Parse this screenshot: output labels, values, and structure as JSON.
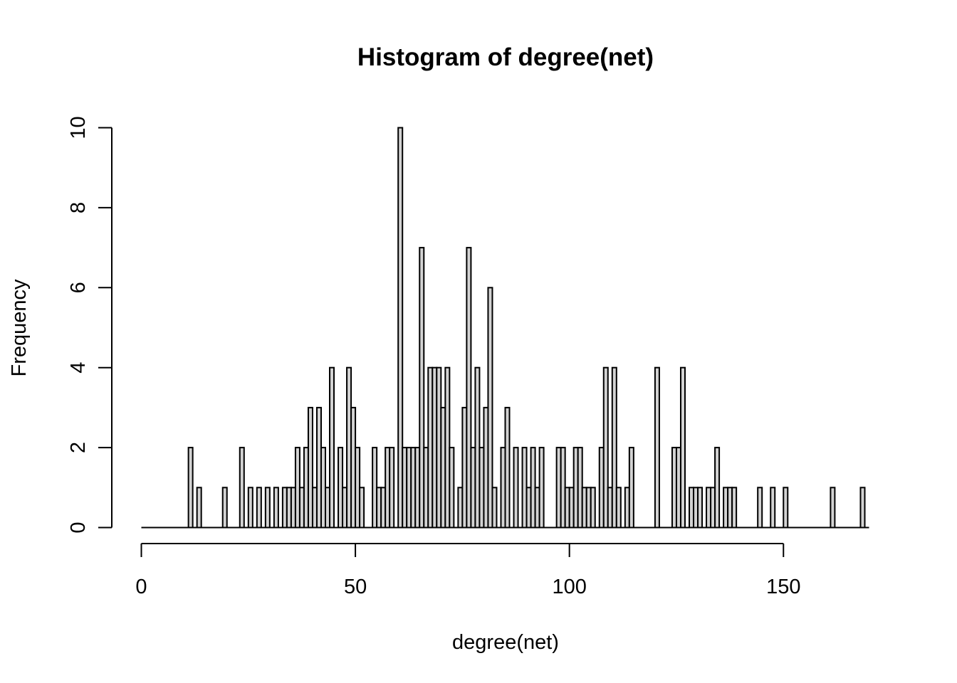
{
  "chart_data": {
    "type": "bar",
    "title": "Histogram of degree(net)",
    "xlabel": "degree(net)",
    "ylabel": "Frequency",
    "bin_width": 1,
    "xlim": [
      0,
      170
    ],
    "ylim": [
      0,
      10
    ],
    "x_ticks": [
      0,
      50,
      100,
      150
    ],
    "y_ticks": [
      0,
      2,
      4,
      6,
      8,
      10
    ],
    "bar_fill": "#d3d3d3",
    "bar_stroke": "#000000",
    "bins": [
      {
        "x": 11,
        "count": 2
      },
      {
        "x": 13,
        "count": 1
      },
      {
        "x": 19,
        "count": 1
      },
      {
        "x": 23,
        "count": 2
      },
      {
        "x": 25,
        "count": 1
      },
      {
        "x": 27,
        "count": 1
      },
      {
        "x": 29,
        "count": 1
      },
      {
        "x": 31,
        "count": 1
      },
      {
        "x": 33,
        "count": 1
      },
      {
        "x": 34,
        "count": 1
      },
      {
        "x": 35,
        "count": 1
      },
      {
        "x": 36,
        "count": 2
      },
      {
        "x": 37,
        "count": 1
      },
      {
        "x": 38,
        "count": 2
      },
      {
        "x": 39,
        "count": 3
      },
      {
        "x": 40,
        "count": 1
      },
      {
        "x": 41,
        "count": 3
      },
      {
        "x": 42,
        "count": 2
      },
      {
        "x": 43,
        "count": 1
      },
      {
        "x": 44,
        "count": 4
      },
      {
        "x": 46,
        "count": 2
      },
      {
        "x": 47,
        "count": 1
      },
      {
        "x": 48,
        "count": 4
      },
      {
        "x": 49,
        "count": 3
      },
      {
        "x": 50,
        "count": 2
      },
      {
        "x": 51,
        "count": 1
      },
      {
        "x": 54,
        "count": 2
      },
      {
        "x": 55,
        "count": 1
      },
      {
        "x": 56,
        "count": 1
      },
      {
        "x": 57,
        "count": 2
      },
      {
        "x": 58,
        "count": 2
      },
      {
        "x": 60,
        "count": 10
      },
      {
        "x": 61,
        "count": 2
      },
      {
        "x": 62,
        "count": 2
      },
      {
        "x": 63,
        "count": 2
      },
      {
        "x": 64,
        "count": 2
      },
      {
        "x": 65,
        "count": 7
      },
      {
        "x": 66,
        "count": 2
      },
      {
        "x": 67,
        "count": 4
      },
      {
        "x": 68,
        "count": 4
      },
      {
        "x": 69,
        "count": 4
      },
      {
        "x": 70,
        "count": 3
      },
      {
        "x": 71,
        "count": 4
      },
      {
        "x": 72,
        "count": 2
      },
      {
        "x": 74,
        "count": 1
      },
      {
        "x": 75,
        "count": 3
      },
      {
        "x": 76,
        "count": 7
      },
      {
        "x": 77,
        "count": 2
      },
      {
        "x": 78,
        "count": 4
      },
      {
        "x": 79,
        "count": 2
      },
      {
        "x": 80,
        "count": 3
      },
      {
        "x": 81,
        "count": 6
      },
      {
        "x": 82,
        "count": 1
      },
      {
        "x": 84,
        "count": 2
      },
      {
        "x": 85,
        "count": 3
      },
      {
        "x": 87,
        "count": 2
      },
      {
        "x": 89,
        "count": 2
      },
      {
        "x": 90,
        "count": 1
      },
      {
        "x": 91,
        "count": 2
      },
      {
        "x": 92,
        "count": 1
      },
      {
        "x": 93,
        "count": 2
      },
      {
        "x": 97,
        "count": 2
      },
      {
        "x": 98,
        "count": 2
      },
      {
        "x": 99,
        "count": 1
      },
      {
        "x": 100,
        "count": 1
      },
      {
        "x": 101,
        "count": 2
      },
      {
        "x": 102,
        "count": 2
      },
      {
        "x": 103,
        "count": 1
      },
      {
        "x": 104,
        "count": 1
      },
      {
        "x": 105,
        "count": 1
      },
      {
        "x": 107,
        "count": 2
      },
      {
        "x": 108,
        "count": 4
      },
      {
        "x": 109,
        "count": 1
      },
      {
        "x": 110,
        "count": 4
      },
      {
        "x": 111,
        "count": 1
      },
      {
        "x": 113,
        "count": 1
      },
      {
        "x": 114,
        "count": 2
      },
      {
        "x": 120,
        "count": 4
      },
      {
        "x": 124,
        "count": 2
      },
      {
        "x": 125,
        "count": 2
      },
      {
        "x": 126,
        "count": 4
      },
      {
        "x": 128,
        "count": 1
      },
      {
        "x": 129,
        "count": 1
      },
      {
        "x": 130,
        "count": 1
      },
      {
        "x": 132,
        "count": 1
      },
      {
        "x": 133,
        "count": 1
      },
      {
        "x": 134,
        "count": 2
      },
      {
        "x": 136,
        "count": 1
      },
      {
        "x": 137,
        "count": 1
      },
      {
        "x": 138,
        "count": 1
      },
      {
        "x": 144,
        "count": 1
      },
      {
        "x": 147,
        "count": 1
      },
      {
        "x": 150,
        "count": 1
      },
      {
        "x": 161,
        "count": 1
      },
      {
        "x": 168,
        "count": 1
      }
    ]
  }
}
